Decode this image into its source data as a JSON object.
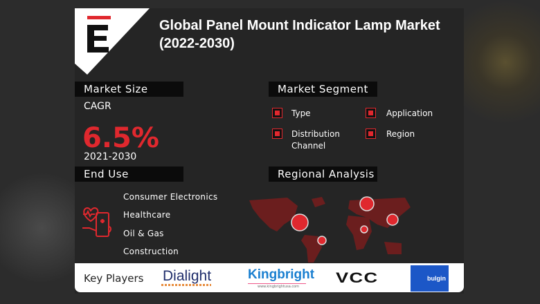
{
  "brand": {
    "logo_letter": "E",
    "accent": "#e0282e"
  },
  "title": {
    "line1": "Global Panel Mount Indicator Lamp Market",
    "line2": "(2022-2030)"
  },
  "market_size": {
    "heading": "Market Size",
    "cagr_label": "CAGR",
    "cagr_value": "6.5%",
    "period": "2021-2030"
  },
  "market_segment": {
    "heading": "Market Segment",
    "items": [
      "Type",
      "Application",
      "Distribution Channel",
      "Region"
    ]
  },
  "end_use": {
    "heading": "End Use",
    "icon": "healthcare-device-icon",
    "items": [
      "Consumer Electronics",
      "Healthcare",
      "Oil & Gas",
      "Construction"
    ]
  },
  "regional": {
    "heading": "Regional Analysis"
  },
  "key_players": {
    "label": "Key Players",
    "logos": [
      "Dialight",
      "Kingbright",
      "VCC",
      "bulgin"
    ],
    "kingbright_url": "www.kingbrightusa.com"
  }
}
